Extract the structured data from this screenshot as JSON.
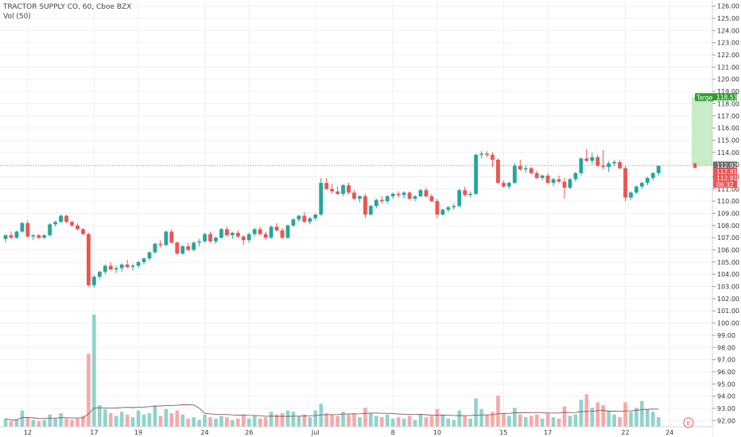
{
  "header": {
    "symbol_line": "TRACTOR SUPPLY CO, 60, Cboe BZX",
    "volume_line": "Vol (50)"
  },
  "colors": {
    "up": "#26a69a",
    "down": "#ef5350",
    "up_volume": "#8fd3cc",
    "down_volume": "#f7a9a7",
    "target_fill": "#c8ebc8",
    "target_tag": "#2ca02c",
    "price_line": "#ef5350",
    "grid": "#eef0f3"
  },
  "chart_data": {
    "type": "candlestick",
    "yaxis": {
      "ticks": [
        "92.00",
        "93.00",
        "94.00",
        "95.00",
        "96.00",
        "97.00",
        "98.00",
        "99.00",
        "100.00",
        "101.00",
        "102.00",
        "103.00",
        "104.00",
        "105.00",
        "106.00",
        "107.00",
        "108.00",
        "109.00",
        "110.00",
        "111.00",
        "112.00",
        "113.00",
        "114.00",
        "115.00",
        "116.00",
        "117.00",
        "118.00",
        "119.00",
        "120.00",
        "121.00",
        "122.00",
        "123.00",
        "124.00",
        "125.00",
        "126.00"
      ],
      "range": [
        91.5,
        126.5
      ]
    },
    "xaxis": {
      "ticks": [
        "12",
        "17",
        "19",
        "24",
        "26",
        "Jul",
        "8",
        "10",
        "15",
        "17",
        "22",
        "24"
      ],
      "tick_bar_index": [
        4,
        16,
        24,
        36,
        44,
        56,
        70,
        78,
        90,
        98,
        112,
        120
      ]
    },
    "price_tags": [
      {
        "label": "118.53",
        "value": 118.53,
        "kind": "target"
      },
      {
        "label": "112.92",
        "value": 112.92,
        "kind": "current"
      },
      {
        "label": "112.91",
        "value": 112.91,
        "kind": "down"
      },
      {
        "label": "112.91",
        "value": 112.91,
        "kind": "down"
      },
      {
        "label": "06:32",
        "value": 111.4,
        "kind": "timer"
      }
    ],
    "target": {
      "label": "Targe",
      "from": 112.92,
      "to": 118.53
    },
    "volume_ma_label": "Vol (50)",
    "volume_ma_period": 50,
    "earnings_marker": "E",
    "candles": [
      [
        106.9,
        107.3,
        106.6,
        107.2,
        0.6
      ],
      [
        107.2,
        107.5,
        106.9,
        107.0,
        0.4
      ],
      [
        107.0,
        107.6,
        106.9,
        107.5,
        0.5
      ],
      [
        107.5,
        108.3,
        107.4,
        108.2,
        1.2
      ],
      [
        108.2,
        108.4,
        107.0,
        107.1,
        0.7
      ],
      [
        107.1,
        107.3,
        106.8,
        107.2,
        0.5
      ],
      [
        107.2,
        107.3,
        106.9,
        107.0,
        0.4
      ],
      [
        107.0,
        107.3,
        106.9,
        107.2,
        0.5
      ],
      [
        107.2,
        108.2,
        107.1,
        108.1,
        0.9
      ],
      [
        108.1,
        108.4,
        107.9,
        108.3,
        0.6
      ],
      [
        108.3,
        108.9,
        108.2,
        108.8,
        1.0
      ],
      [
        108.8,
        108.9,
        108.2,
        108.3,
        0.6
      ],
      [
        108.3,
        108.4,
        107.9,
        108.0,
        0.5
      ],
      [
        108.0,
        108.2,
        107.6,
        107.7,
        0.6
      ],
      [
        107.7,
        107.8,
        107.2,
        107.3,
        0.8
      ],
      [
        107.3,
        107.4,
        103.0,
        103.1,
        5.4
      ],
      [
        103.1,
        103.9,
        102.9,
        103.8,
        8.3
      ],
      [
        103.8,
        104.3,
        103.6,
        104.2,
        1.6
      ],
      [
        104.2,
        104.8,
        104.0,
        104.7,
        1.3
      ],
      [
        104.7,
        105.0,
        104.3,
        104.4,
        1.0
      ],
      [
        104.4,
        104.7,
        104.1,
        104.5,
        0.8
      ],
      [
        104.5,
        104.9,
        104.2,
        104.8,
        1.1
      ],
      [
        104.8,
        105.2,
        104.5,
        104.6,
        0.9
      ],
      [
        104.6,
        104.9,
        104.3,
        104.7,
        0.7
      ],
      [
        104.7,
        105.1,
        104.5,
        105.0,
        1.2
      ],
      [
        105.0,
        105.4,
        104.8,
        105.3,
        0.9
      ],
      [
        105.3,
        105.9,
        105.1,
        105.8,
        1.0
      ],
      [
        105.8,
        106.6,
        105.7,
        106.5,
        1.5
      ],
      [
        106.5,
        106.8,
        106.2,
        106.4,
        0.8
      ],
      [
        106.4,
        107.6,
        106.3,
        107.5,
        1.3
      ],
      [
        107.5,
        107.7,
        106.5,
        106.6,
        1.0
      ],
      [
        106.6,
        106.7,
        105.6,
        105.7,
        1.2
      ],
      [
        105.7,
        106.4,
        105.6,
        106.3,
        0.9
      ],
      [
        106.3,
        106.6,
        105.9,
        106.0,
        0.6
      ],
      [
        106.0,
        106.7,
        105.9,
        106.6,
        0.7
      ],
      [
        106.6,
        106.9,
        106.3,
        106.7,
        0.5
      ],
      [
        106.7,
        107.4,
        106.6,
        107.3,
        0.9
      ],
      [
        107.3,
        107.5,
        106.6,
        106.7,
        0.7
      ],
      [
        106.7,
        107.1,
        106.5,
        107.0,
        0.6
      ],
      [
        107.0,
        107.8,
        106.9,
        107.7,
        0.8
      ],
      [
        107.7,
        107.9,
        107.1,
        107.2,
        0.7
      ],
      [
        107.2,
        107.5,
        106.9,
        107.4,
        0.5
      ],
      [
        107.4,
        107.6,
        107.0,
        107.1,
        0.6
      ],
      [
        107.1,
        107.2,
        106.4,
        106.8,
        0.9
      ],
      [
        106.8,
        107.4,
        106.6,
        107.3,
        0.6
      ],
      [
        107.3,
        107.8,
        107.1,
        107.7,
        0.8
      ],
      [
        107.7,
        107.9,
        107.2,
        107.3,
        0.6
      ],
      [
        107.3,
        107.5,
        106.8,
        107.0,
        0.7
      ],
      [
        107.0,
        108.0,
        106.9,
        107.9,
        1.1
      ],
      [
        107.9,
        108.2,
        107.5,
        107.6,
        0.9
      ],
      [
        107.6,
        107.8,
        106.9,
        107.0,
        1.0
      ],
      [
        107.0,
        108.1,
        106.9,
        108.0,
        1.2
      ],
      [
        108.0,
        108.6,
        107.9,
        108.5,
        1.1
      ],
      [
        108.5,
        108.9,
        108.3,
        108.8,
        0.8
      ],
      [
        108.8,
        109.1,
        108.2,
        108.3,
        0.9
      ],
      [
        108.3,
        108.7,
        108.1,
        108.6,
        0.7
      ],
      [
        108.6,
        109.0,
        108.4,
        108.9,
        1.2
      ],
      [
        108.9,
        111.9,
        108.8,
        111.5,
        1.7
      ],
      [
        111.5,
        111.9,
        110.9,
        111.0,
        1.0
      ],
      [
        111.0,
        111.4,
        110.6,
        110.8,
        0.9
      ],
      [
        110.8,
        111.2,
        110.5,
        110.6,
        0.8
      ],
      [
        110.6,
        111.4,
        110.4,
        111.3,
        1.1
      ],
      [
        111.3,
        111.5,
        110.6,
        110.7,
        0.9
      ],
      [
        110.7,
        110.9,
        110.1,
        110.2,
        1.0
      ],
      [
        110.2,
        110.5,
        109.9,
        110.4,
        0.7
      ],
      [
        110.4,
        110.6,
        108.6,
        108.9,
        1.4
      ],
      [
        108.9,
        109.7,
        108.8,
        109.6,
        1.0
      ],
      [
        109.6,
        110.2,
        109.4,
        110.1,
        0.8
      ],
      [
        110.1,
        110.4,
        109.8,
        110.0,
        0.7
      ],
      [
        110.0,
        110.5,
        109.8,
        110.4,
        0.9
      ],
      [
        110.4,
        110.7,
        110.2,
        110.6,
        0.6
      ],
      [
        110.6,
        110.8,
        110.3,
        110.5,
        0.7
      ],
      [
        110.5,
        110.8,
        110.2,
        110.7,
        0.6
      ],
      [
        110.7,
        110.8,
        110.1,
        110.2,
        0.8
      ],
      [
        110.2,
        110.5,
        110.0,
        110.4,
        0.5
      ],
      [
        110.4,
        111.0,
        110.3,
        110.9,
        0.9
      ],
      [
        110.9,
        111.1,
        110.3,
        110.4,
        0.7
      ],
      [
        110.4,
        110.6,
        109.9,
        110.0,
        0.8
      ],
      [
        110.0,
        110.2,
        108.6,
        108.9,
        1.3
      ],
      [
        108.9,
        109.4,
        108.8,
        109.3,
        0.9
      ],
      [
        109.3,
        109.6,
        109.1,
        109.5,
        0.6
      ],
      [
        109.5,
        109.8,
        109.3,
        109.6,
        0.5
      ],
      [
        109.6,
        111.0,
        109.5,
        110.9,
        1.2
      ],
      [
        110.9,
        111.2,
        110.4,
        110.5,
        0.8
      ],
      [
        110.5,
        110.8,
        110.3,
        110.6,
        0.6
      ],
      [
        110.6,
        113.9,
        110.5,
        113.8,
        2.1
      ],
      [
        113.8,
        114.1,
        113.5,
        113.9,
        1.3
      ],
      [
        113.9,
        114.1,
        113.6,
        113.8,
        0.9
      ],
      [
        113.8,
        114.0,
        112.8,
        113.4,
        1.1
      ],
      [
        113.4,
        113.5,
        111.4,
        111.5,
        2.3
      ],
      [
        111.5,
        111.7,
        111.1,
        111.2,
        1.0
      ],
      [
        111.2,
        111.6,
        111.0,
        111.5,
        0.8
      ],
      [
        111.5,
        113.1,
        111.4,
        112.9,
        1.4
      ],
      [
        112.9,
        113.4,
        112.5,
        112.6,
        0.9
      ],
      [
        112.6,
        112.9,
        112.3,
        112.7,
        0.7
      ],
      [
        112.7,
        112.8,
        112.2,
        112.3,
        0.8
      ],
      [
        112.3,
        112.5,
        111.8,
        111.9,
        0.9
      ],
      [
        111.9,
        112.2,
        111.7,
        112.1,
        0.6
      ],
      [
        112.1,
        112.3,
        111.4,
        111.5,
        1.0
      ],
      [
        111.5,
        111.9,
        111.2,
        111.8,
        0.7
      ],
      [
        111.8,
        112.1,
        111.5,
        111.6,
        0.6
      ],
      [
        111.6,
        111.9,
        110.2,
        111.1,
        1.5
      ],
      [
        111.1,
        111.9,
        111.0,
        111.8,
        0.8
      ],
      [
        111.8,
        112.4,
        111.6,
        112.3,
        0.9
      ],
      [
        112.3,
        113.6,
        112.1,
        113.5,
        2.0
      ],
      [
        113.5,
        114.3,
        113.2,
        113.3,
        2.4
      ],
      [
        113.3,
        114.0,
        113.0,
        113.6,
        1.4
      ],
      [
        113.6,
        113.8,
        112.8,
        112.9,
        1.8
      ],
      [
        112.9,
        114.2,
        112.6,
        112.8,
        1.6
      ],
      [
        112.8,
        113.3,
        112.4,
        113.1,
        1.2
      ],
      [
        113.1,
        113.4,
        112.9,
        113.2,
        0.9
      ],
      [
        113.2,
        113.4,
        112.6,
        112.7,
        0.7
      ],
      [
        112.7,
        112.9,
        110.0,
        110.3,
        1.8
      ],
      [
        110.3,
        110.8,
        110.1,
        110.7,
        1.1
      ],
      [
        110.7,
        111.3,
        110.6,
        111.2,
        1.4
      ],
      [
        111.2,
        111.6,
        111.0,
        111.5,
        1.9
      ],
      [
        111.5,
        112.0,
        111.3,
        111.9,
        1.3
      ],
      [
        111.9,
        112.4,
        111.7,
        112.3,
        1.1
      ],
      [
        112.3,
        112.9,
        112.1,
        112.9,
        0.7
      ]
    ]
  }
}
